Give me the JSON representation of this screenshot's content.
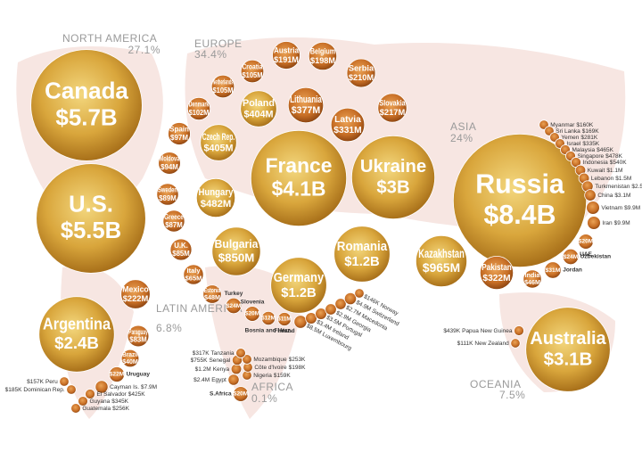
{
  "chart_data": {
    "type": "bubble",
    "value_unit": "$M",
    "regions": [
      {
        "name": "NORTH AMERICA",
        "share": {
          "value": 27.1,
          "label": "27.1%"
        },
        "countries": [
          {
            "name": "Canada",
            "value": 5700,
            "value_label": "$5.7B"
          },
          {
            "name": "U.S.",
            "value": 5500,
            "value_label": "$5.5B"
          }
        ]
      },
      {
        "name": "EUROPE",
        "share": {
          "value": 34.4,
          "label": "34.4%"
        },
        "countries": [
          {
            "name": "Croatia",
            "value": 105,
            "value_label": "$105M"
          },
          {
            "name": "Austria",
            "value": 191,
            "value_label": "$191M"
          },
          {
            "name": "Belgium",
            "value": 198,
            "value_label": "$198M"
          },
          {
            "name": "Netherlands",
            "value": 105,
            "value_label": "$105M"
          },
          {
            "name": "Serbia",
            "value": 210,
            "value_label": "$210M"
          },
          {
            "name": "Denmark",
            "value": 102,
            "value_label": "$102M"
          },
          {
            "name": "Poland",
            "value": 404,
            "value_label": "$404M"
          },
          {
            "name": "Lithuania",
            "value": 377,
            "value_label": "$377M"
          },
          {
            "name": "Slovakia",
            "value": 217,
            "value_label": "$217M"
          },
          {
            "name": "Spain",
            "value": 97,
            "value_label": "$97M"
          },
          {
            "name": "Latvia",
            "value": 331,
            "value_label": "$331M"
          },
          {
            "name": "Czech Rep.",
            "value": 405,
            "value_label": "$405M"
          },
          {
            "name": "Moldova",
            "value": 94,
            "value_label": "$94M"
          },
          {
            "name": "Sweden",
            "value": 89,
            "value_label": "$89M"
          },
          {
            "name": "Hungary",
            "value": 482,
            "value_label": "$482M"
          },
          {
            "name": "France",
            "value": 4100,
            "value_label": "$4.1B"
          },
          {
            "name": "Ukraine",
            "value": 3000,
            "value_label": "$3B"
          },
          {
            "name": "Greece",
            "value": 87,
            "value_label": "$87M"
          },
          {
            "name": "U.K.",
            "value": 85,
            "value_label": "$85M"
          },
          {
            "name": "Bulgaria",
            "value": 850,
            "value_label": "$850M"
          },
          {
            "name": "Italy",
            "value": 65,
            "value_label": "$65M"
          },
          {
            "name": "Romania",
            "value": 1200,
            "value_label": "$1.2B"
          },
          {
            "name": "Germany",
            "value": 1200,
            "value_label": "$1.2B"
          },
          {
            "name": "Estonia",
            "value": 48,
            "value_label": "$48M"
          },
          {
            "name": "Turkey",
            "value": 24,
            "value_label": "$24M"
          },
          {
            "name": "Slovenia",
            "value": 20,
            "value_label": "$20M"
          },
          {
            "name": "Bosnia and Herz.",
            "value": 12,
            "value_label": "$12M"
          },
          {
            "name": "Finland",
            "value": 11,
            "value_label": "$11M"
          },
          {
            "name": "Luxembourg",
            "value": 8.5,
            "value_label": "$8.5M"
          },
          {
            "name": "Ireland",
            "value": 3.4,
            "value_label": "$3.4M"
          },
          {
            "name": "Portugal",
            "value": 3.5,
            "value_label": "$3.5M"
          },
          {
            "name": "Georgia",
            "value": 2.9,
            "value_label": "$2.9M"
          },
          {
            "name": "Macedonia",
            "value": 2.7,
            "value_label": "$2.7M"
          },
          {
            "name": "Switzerland",
            "value": 4.9,
            "value_label": "$4.9M"
          },
          {
            "name": "Norway",
            "value": 0.146,
            "value_label": "$146K"
          }
        ]
      },
      {
        "name": "ASIA",
        "share": {
          "value": 24,
          "label": "24%"
        },
        "countries": [
          {
            "name": "Russia",
            "value": 8400,
            "value_label": "$8.4B"
          },
          {
            "name": "Kazakhstan",
            "value": 965,
            "value_label": "$965M"
          },
          {
            "name": "Pakistan",
            "value": 322,
            "value_label": "$322M"
          },
          {
            "name": "India",
            "value": 46,
            "value_label": "$46M"
          },
          {
            "name": "Jordan",
            "value": 31,
            "value_label": "$31M"
          },
          {
            "name": "Uzbekistan",
            "value": 24,
            "value_label": "$24M"
          },
          {
            "name": "UAE",
            "value": 20,
            "value_label": "$20M"
          },
          {
            "name": "Myanmar",
            "value": 0.16,
            "value_label": "$160K"
          },
          {
            "name": "Sri Lanka",
            "value": 0.169,
            "value_label": "$169K"
          },
          {
            "name": "Yemen",
            "value": 0.281,
            "value_label": "$281K"
          },
          {
            "name": "Israel",
            "value": 0.335,
            "value_label": "$335K"
          },
          {
            "name": "Malaysia",
            "value": 0.465,
            "value_label": "$465K"
          },
          {
            "name": "Singapore",
            "value": 0.478,
            "value_label": "$478K"
          },
          {
            "name": "Indonesia",
            "value": 0.54,
            "value_label": "$540K"
          },
          {
            "name": "Kuwait",
            "value": 1.1,
            "value_label": "$1.1M"
          },
          {
            "name": "Lebanon",
            "value": 1.5,
            "value_label": "$1.5M"
          },
          {
            "name": "Turkmenistan",
            "value": 2.5,
            "value_label": "$2.5M"
          },
          {
            "name": "China",
            "value": 3.1,
            "value_label": "$3.1M"
          },
          {
            "name": "Vietnam",
            "value": 9.9,
            "value_label": "$9.9M"
          },
          {
            "name": "Iran",
            "value": 9.9,
            "value_label": "$9.9M"
          }
        ]
      },
      {
        "name": "LATIN AMERICA",
        "share": {
          "value": 6.8,
          "label": "6.8%"
        },
        "countries": [
          {
            "name": "Argentina",
            "value": 2400,
            "value_label": "$2.4B"
          },
          {
            "name": "Mexico",
            "value": 222,
            "value_label": "$222M"
          },
          {
            "name": "Paraguay",
            "value": 83,
            "value_label": "$83M"
          },
          {
            "name": "Brazil",
            "value": 40,
            "value_label": "$40M"
          },
          {
            "name": "Uruguay",
            "value": 22,
            "value_label": "$22M"
          },
          {
            "name": "Cayman Is.",
            "value": 7.9,
            "value_label": "$7.9M"
          },
          {
            "name": "Peru",
            "value": 0.157,
            "value_label": "$157K"
          },
          {
            "name": "Dominican Rep.",
            "value": 0.185,
            "value_label": "$185K"
          },
          {
            "name": "El Salvador",
            "value": 0.425,
            "value_label": "$425K"
          },
          {
            "name": "Guyana",
            "value": 0.345,
            "value_label": "$345K"
          },
          {
            "name": "Guatemala",
            "value": 0.256,
            "value_label": "$256K"
          }
        ]
      },
      {
        "name": "AFRICA",
        "share": {
          "value": 0.1,
          "label": "0.1%"
        },
        "countries": [
          {
            "name": "S.Africa",
            "value": 20,
            "value_label": "$20M"
          },
          {
            "name": "Egypt",
            "value": 2.4,
            "value_label": "$2.4M"
          },
          {
            "name": "Nigeria",
            "value": 0.159,
            "value_label": "$159K"
          },
          {
            "name": "Kenya",
            "value": 1.2,
            "value_label": "$1.2M"
          },
          {
            "name": "Côte d'Ivoire",
            "value": 0.198,
            "value_label": "$198K"
          },
          {
            "name": "Senegal",
            "value": 0.755,
            "value_label": "$755K"
          },
          {
            "name": "Mozambique",
            "value": 0.253,
            "value_label": "$253K"
          },
          {
            "name": "Tanzania",
            "value": 0.317,
            "value_label": "$317K"
          }
        ]
      },
      {
        "name": "OCEANIA",
        "share": {
          "value": 7.5,
          "label": "7.5%"
        },
        "countries": [
          {
            "name": "Australia",
            "value": 3100,
            "value_label": "$3.1B"
          },
          {
            "name": "Papua New Guinea",
            "value": 0.439,
            "value_label": "$439K"
          },
          {
            "name": "New Zealand",
            "value": 0.111,
            "value_label": "$111K"
          }
        ]
      }
    ]
  }
}
